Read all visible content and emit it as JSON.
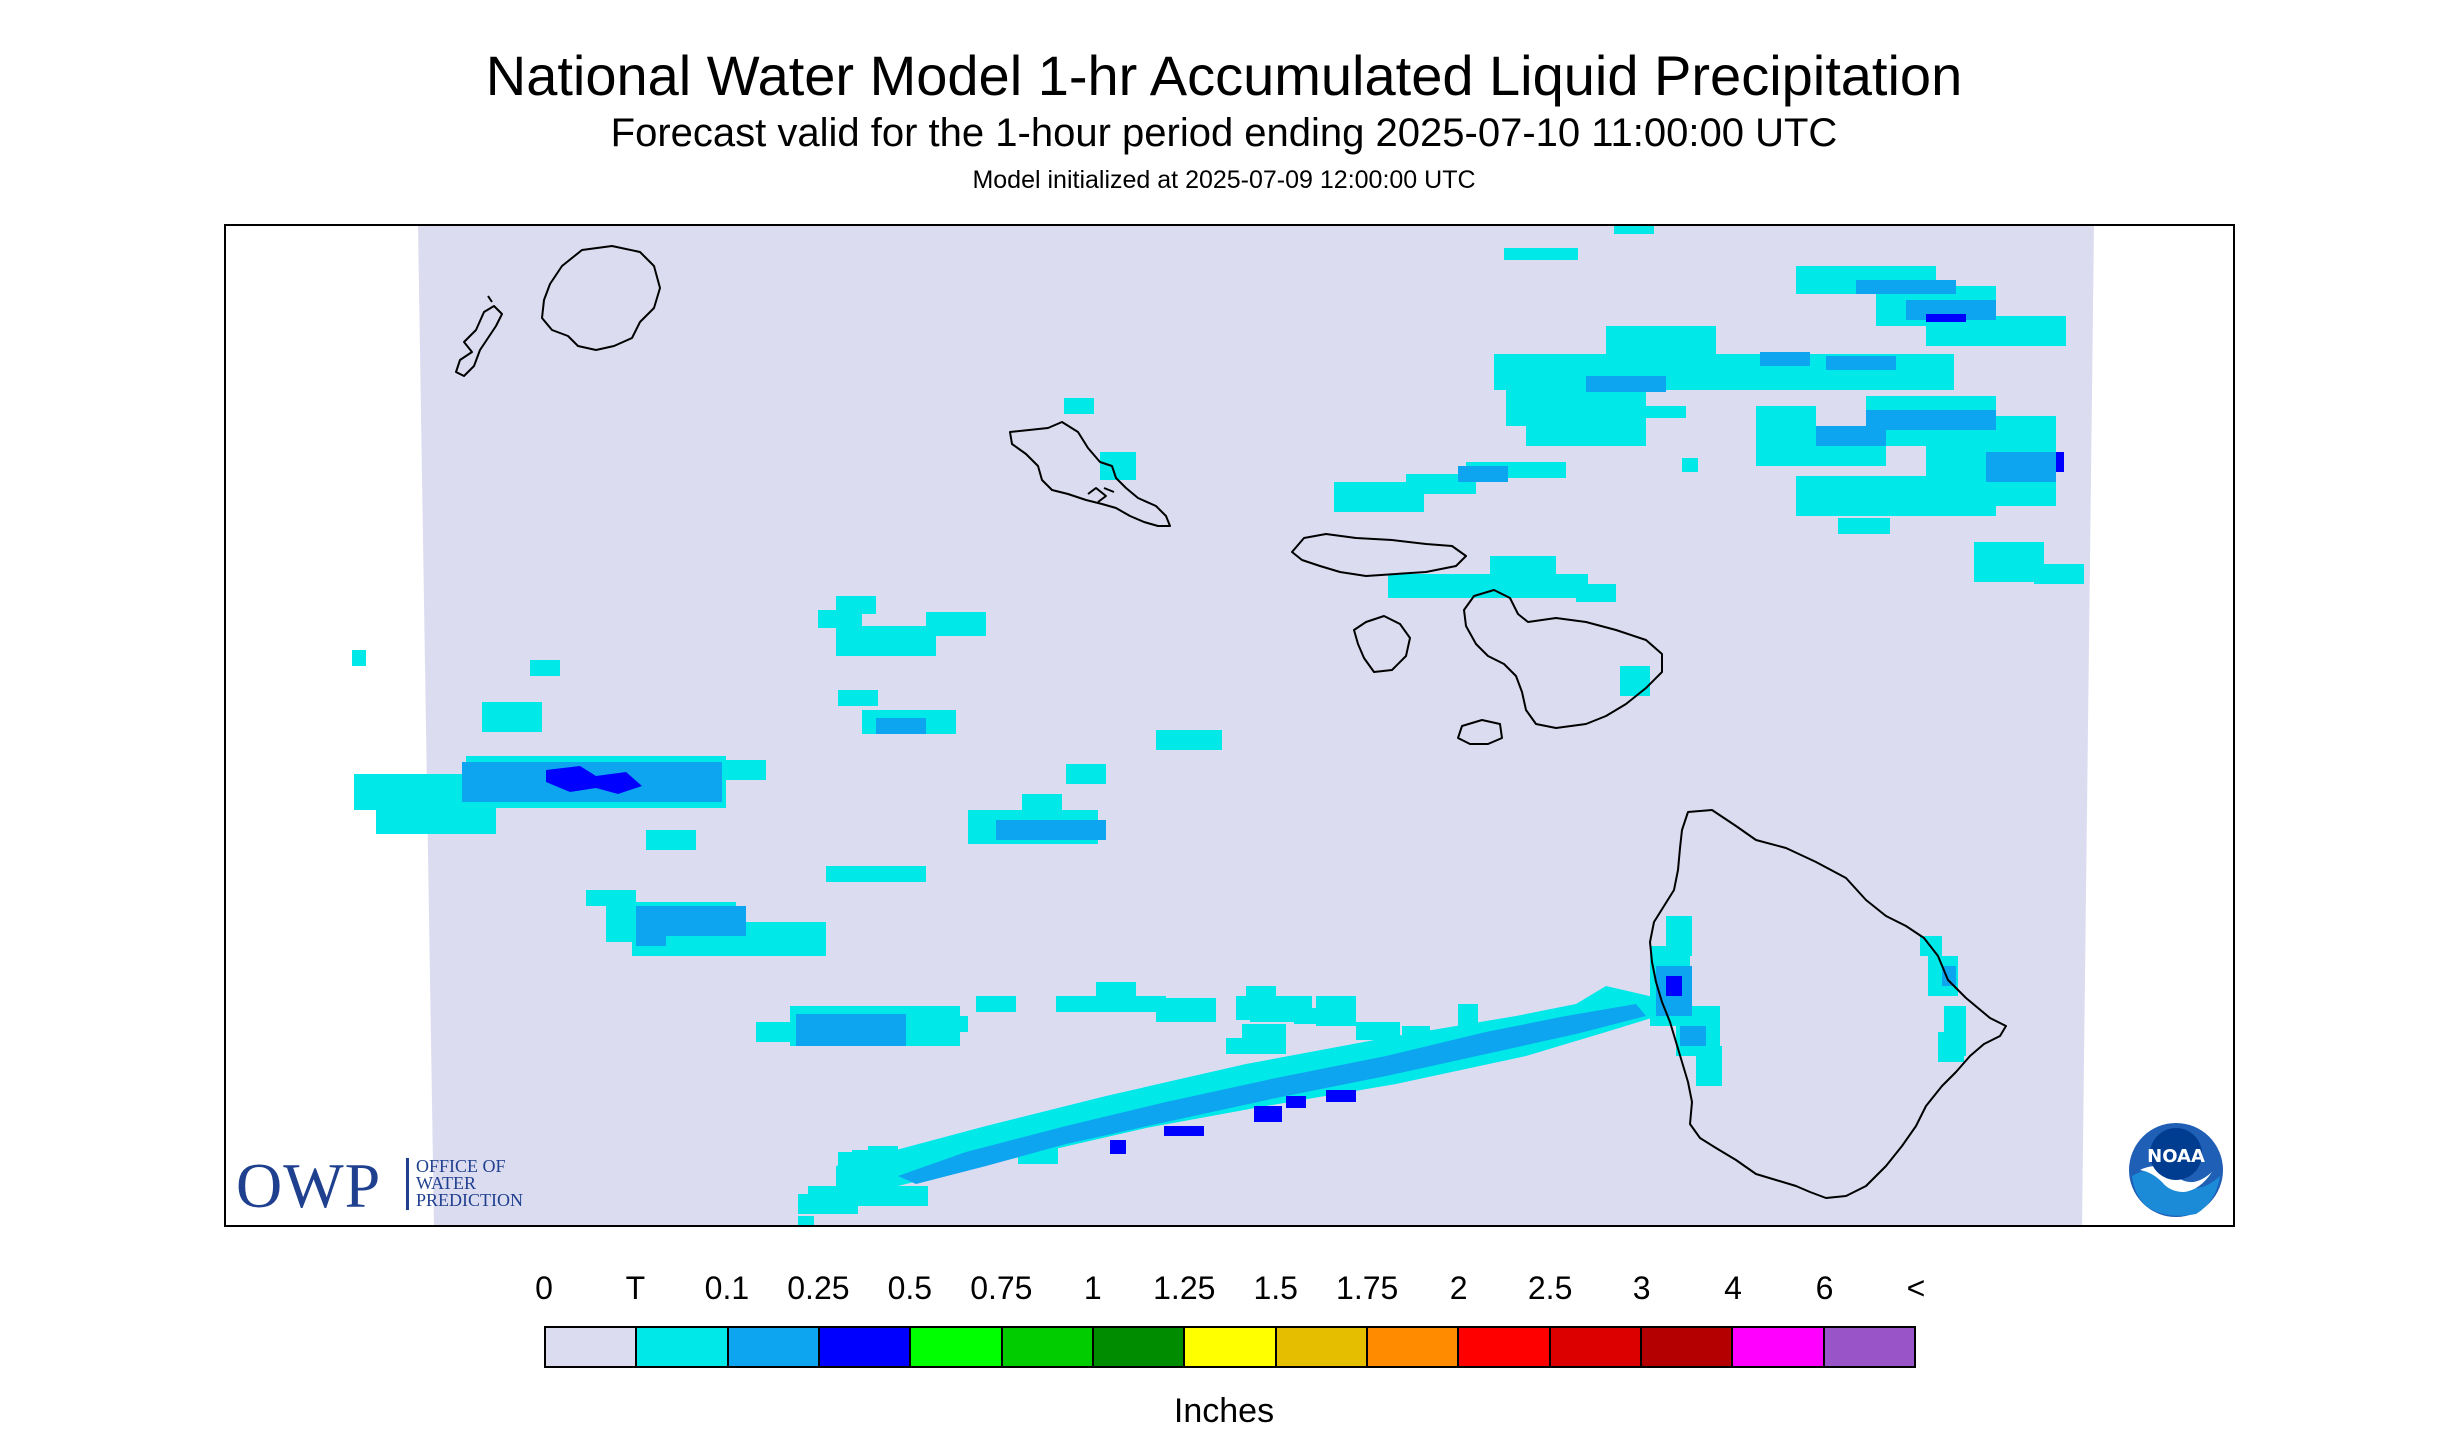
{
  "header": {
    "title": "National Water Model 1-hr Accumulated Liquid Precipitation",
    "subtitle": "Forecast valid for the 1-hour period ending 2025-07-10 11:00:00 UTC",
    "init": "Model initialized at 2025-07-09 12:00:00 UTC"
  },
  "logos": {
    "owp_letters": "OWP",
    "owp_line1": "OFFICE OF",
    "owp_line2": "WATER",
    "owp_line3": "PREDICTION",
    "noaa_text": "NOAA"
  },
  "legend": {
    "labels": [
      "0",
      "T",
      "0.1",
      "0.25",
      "0.5",
      "0.75",
      "1",
      "1.25",
      "1.5",
      "1.75",
      "2",
      "2.5",
      "3",
      "4",
      "6",
      "<"
    ],
    "colors": [
      "#dcdcf0",
      "#00e8e8",
      "#0ea5f0",
      "#0000ff",
      "#00ff00",
      "#00cc00",
      "#008c00",
      "#ffff00",
      "#e6be00",
      "#ff8c00",
      "#ff0000",
      "#dc0000",
      "#b40000",
      "#ff00ff",
      "#9954c8"
    ],
    "units": "Inches"
  },
  "colors": {
    "domain_fill": "#dcdcf0",
    "trace": "#00e8e8",
    "light_blue": "#0ea5f0",
    "blue": "#0000ff",
    "coast": "#000000",
    "owp_blue": "#1f3f8f",
    "noaa_blue": "#1f5fb5"
  }
}
